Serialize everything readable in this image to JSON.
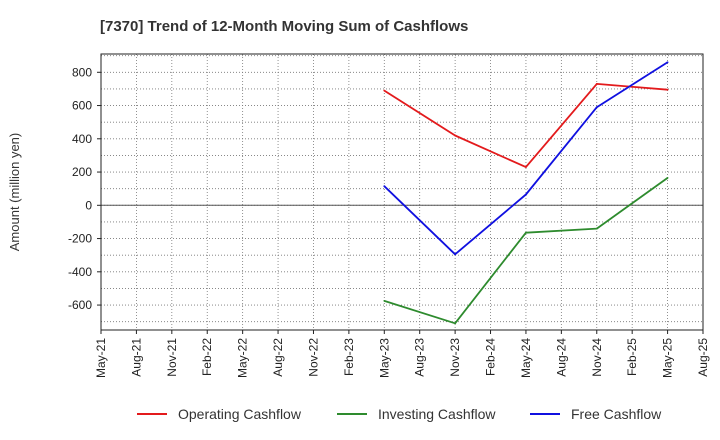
{
  "chart_data": {
    "type": "line",
    "title": "[7370]  Trend of 12-Month Moving Sum of Cashflows",
    "xlabel": "",
    "ylabel": "Amount (million yen)",
    "x_ticks": [
      "May-21",
      "Aug-21",
      "Nov-21",
      "Feb-22",
      "May-22",
      "Aug-22",
      "Nov-22",
      "Feb-23",
      "May-23",
      "Aug-23",
      "Nov-23",
      "Feb-24",
      "May-24",
      "Aug-24",
      "Nov-24",
      "Feb-25",
      "May-25",
      "Aug-25"
    ],
    "y_ticks": [
      -600,
      -400,
      -200,
      0,
      200,
      400,
      600,
      800
    ],
    "ylim": [
      -750,
      910
    ],
    "grid": true,
    "legend_position": "bottom",
    "x": [
      "May-23",
      "Nov-23",
      "May-24",
      "Nov-24",
      "May-25"
    ],
    "series": [
      {
        "name": "Operating Cashflow",
        "color": "#e31a1c",
        "values": [
          690,
          420,
          230,
          730,
          695
        ]
      },
      {
        "name": "Investing Cashflow",
        "color": "#2e8b2e",
        "values": [
          -575,
          -710,
          -165,
          -140,
          165
        ]
      },
      {
        "name": "Free Cashflow",
        "color": "#1010e0",
        "values": [
          115,
          -295,
          65,
          590,
          860
        ]
      }
    ]
  }
}
